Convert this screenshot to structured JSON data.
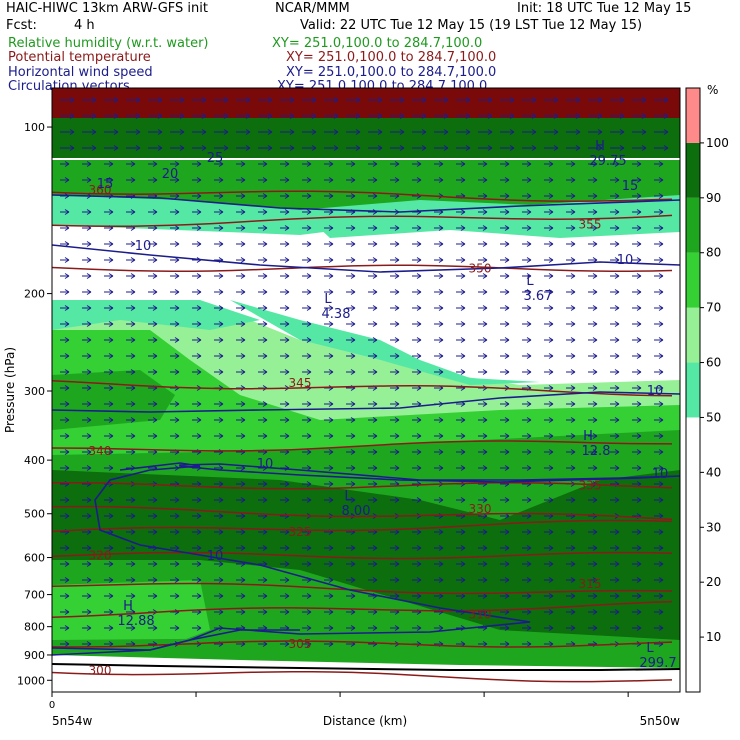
{
  "header": {
    "model": "HAIC-HIWC 13km ARW-GFS init",
    "org": "NCAR/MMM",
    "init": "Init: 18 UTC Tue 12 May 15",
    "fcst_label": "Fcst:",
    "fcst_value": "4 h",
    "valid": "Valid: 22 UTC Tue 12 May 15 (19 LST Tue 12 May 15)",
    "fields": [
      {
        "name": "Relative humidity (w.r.t. water)",
        "xy": "XY= 251.0,100.0 to 284.7,100.0",
        "color": "#1f9a1f"
      },
      {
        "name": "Potential temperature",
        "xy": "XY= 251.0,100.0 to 284.7,100.0",
        "color": "#8b1a1a"
      },
      {
        "name": "Horizontal wind speed",
        "xy": "XY= 251.0,100.0 to 284.7,100.0",
        "color": "#1c1c8c"
      },
      {
        "name": "Circulation vectors",
        "xy": "XY= 251.0,100.0 to 284.7,100.0",
        "color": "#1c1c8c"
      }
    ]
  },
  "chart_data": {
    "type": "cross-section",
    "ylabel": "Pressure (hPa)",
    "xlabel": "Distance (km)",
    "x_start_label": "0",
    "x_left_location": "5n54w",
    "x_right_location": "5n50w",
    "y_scale": "log",
    "yticks": [
      100,
      200,
      300,
      400,
      500,
      600,
      700,
      800,
      900,
      1000
    ],
    "ylim": [
      1050,
      85
    ],
    "colorbar": {
      "unit": "%",
      "levels": [
        10,
        20,
        30,
        40,
        50,
        60,
        70,
        80,
        90,
        100
      ],
      "colors": [
        "#ffffff",
        "#ffffff",
        "#ffffff",
        "#ffffff",
        "#ffffff",
        "#55e8a5",
        "#96f096",
        "#34d034",
        "#1fa61f",
        "#0c6e0c",
        "#ff8a8a"
      ]
    },
    "theta_contours": [
      {
        "value": "300",
        "p": 960
      },
      {
        "value": "305",
        "p": 860
      },
      {
        "value": "310",
        "p": 760
      },
      {
        "value": "315",
        "p": 670
      },
      {
        "value": "320",
        "p": 595
      },
      {
        "value": "325",
        "p": 540
      },
      {
        "value": "330",
        "p": 490
      },
      {
        "value": "335",
        "p": 445
      },
      {
        "value": "340",
        "p": 385
      },
      {
        "value": "345",
        "p": 290
      },
      {
        "value": "350",
        "p": 180
      },
      {
        "value": "355",
        "p": 150
      },
      {
        "value": "360",
        "p": 130
      }
    ],
    "wind_labels": [
      "10",
      "10",
      "10",
      "10",
      "10",
      "10",
      "15",
      "15",
      "25",
      "20"
    ],
    "extrema": [
      {
        "type": "L",
        "value": "4.38"
      },
      {
        "type": "L",
        "value": "3.67"
      },
      {
        "type": "H",
        "value": "12.8"
      },
      {
        "type": "L",
        "value": "8.00"
      },
      {
        "type": "H",
        "value": "12.88"
      },
      {
        "type": "L",
        "value": "299.7"
      },
      {
        "type": "H",
        "value": "29.75"
      }
    ]
  }
}
